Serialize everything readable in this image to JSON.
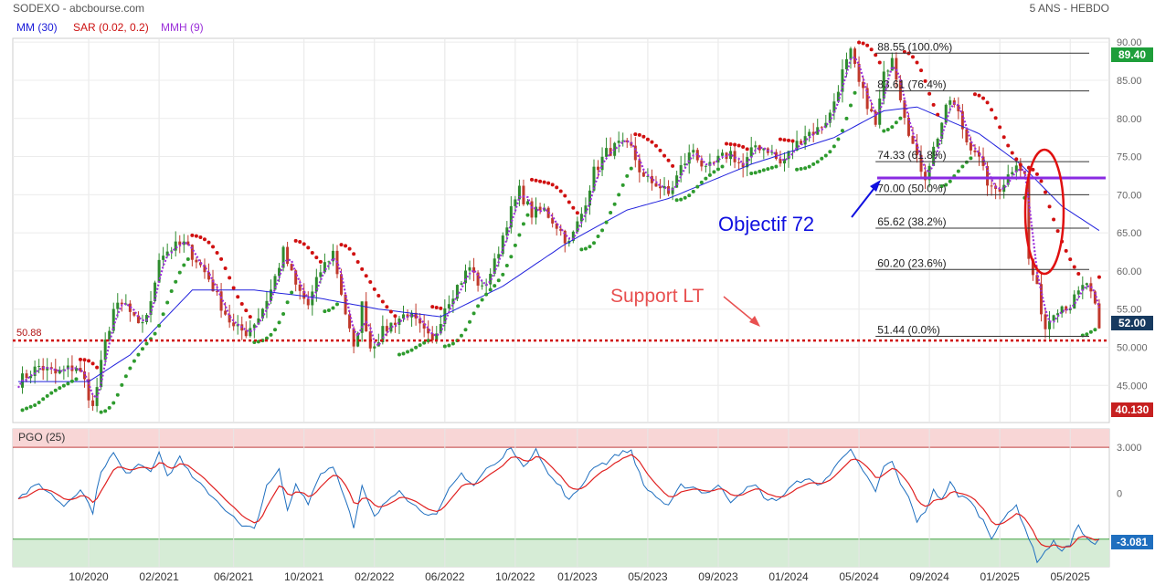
{
  "header": {
    "symbol": "SODEXO - abcbourse.com",
    "period": "5 ANS - HEBDO"
  },
  "indicators": [
    {
      "label": "MM (30)",
      "color": "#1a1ad8"
    },
    {
      "label": "SAR (0.02, 0.2)",
      "color": "#cc1111"
    },
    {
      "label": "MMH (9)",
      "color": "#9b30d9"
    }
  ],
  "colors": {
    "up_candle": "#2e8b2e",
    "down_candle": "#c0392b",
    "sar_up": "#2e9b2e",
    "sar_down": "#d01010",
    "mm30": "#2222dd",
    "mmh9": "#9b30d9",
    "support": "#d01010",
    "pgo_line": "#1f6fbf",
    "pgo_signal": "#e02020",
    "pgo_top_zone": "#f8d6d6",
    "pgo_bottom_zone": "#d6ecd6"
  },
  "chart_data": [
    {
      "type": "candlestick",
      "title": "SODEXO - abcbourse.com",
      "period": "5 ANS - HEBDO",
      "x_tick_labels": [
        "10/2020",
        "02/2021",
        "06/2021",
        "10/2021",
        "02/2022",
        "06/2022",
        "10/2022",
        "01/2023",
        "05/2023",
        "09/2023",
        "01/2024",
        "05/2024",
        "09/2024",
        "01/2025",
        "05/2025"
      ],
      "x_tick_weeks": [
        0,
        17,
        35,
        52,
        69,
        86,
        103,
        118,
        135,
        152,
        169,
        186,
        203,
        220,
        237
      ],
      "ylim": [
        40.13,
        90.5
      ],
      "y_ticks": [
        45,
        50,
        55,
        60,
        65,
        70,
        75,
        80,
        85,
        90
      ],
      "y_tick_labels": [
        "45.000",
        "50.000",
        "55.00",
        "60.00",
        "65.00",
        "70.00",
        "75.00",
        "80.00",
        "85.00",
        "90.00"
      ],
      "last_price": "52.00",
      "high_label": "89.40",
      "low_label": "40.130",
      "support_level": 50.88,
      "support_label": "50.88",
      "objective_level": 72.2,
      "fibonacci": [
        {
          "value": 88.55,
          "label": "88.55 (100.0%)"
        },
        {
          "value": 83.61,
          "label": "83.61 (76.4%)"
        },
        {
          "value": 74.33,
          "label": "74.33 (61.8%)"
        },
        {
          "value": 70.0,
          "label": "70.00 (50.0%)"
        },
        {
          "value": 65.62,
          "label": "65.62 (38.2%)"
        },
        {
          "value": 60.2,
          "label": "60.20 (23.6%)"
        },
        {
          "value": 51.44,
          "label": "51.44 (0.0%)"
        }
      ],
      "annotations": [
        {
          "text": "Objectif  72",
          "color": "#1010e0"
        },
        {
          "text": "Support LT",
          "color": "#e85050"
        }
      ],
      "close_anchors": [
        [
          -17,
          45.5
        ],
        [
          -12,
          47.5
        ],
        [
          -8,
          46.5
        ],
        [
          -3,
          47.5
        ],
        [
          -1,
          45.5
        ],
        [
          1,
          42.0
        ],
        [
          4,
          50.5
        ],
        [
          6,
          55.0
        ],
        [
          9,
          55.5
        ],
        [
          12,
          52.5
        ],
        [
          15,
          55.5
        ],
        [
          17,
          62.0
        ],
        [
          20,
          63.0
        ],
        [
          23,
          63.5
        ],
        [
          26,
          61.5
        ],
        [
          29,
          59.0
        ],
        [
          32,
          55.5
        ],
        [
          35,
          52.5
        ],
        [
          38,
          52.0
        ],
        [
          41,
          54.0
        ],
        [
          44,
          57.5
        ],
        [
          47,
          62.5
        ],
        [
          50,
          58.0
        ],
        [
          53,
          55.5
        ],
        [
          56,
          60.0
        ],
        [
          59,
          62.5
        ],
        [
          62,
          54.5
        ],
        [
          64,
          49.5
        ],
        [
          66,
          55.5
        ],
        [
          68,
          50.0
        ],
        [
          71,
          52.0
        ],
        [
          74,
          53.5
        ],
        [
          77,
          54.5
        ],
        [
          80,
          52.5
        ],
        [
          83,
          50.5
        ],
        [
          86,
          55.5
        ],
        [
          89,
          58.0
        ],
        [
          92,
          60.5
        ],
        [
          95,
          57.5
        ],
        [
          98,
          61.0
        ],
        [
          101,
          66.5
        ],
        [
          104,
          70.5
        ],
        [
          107,
          67.5
        ],
        [
          110,
          68.0
        ],
        [
          113,
          66.0
        ],
        [
          116,
          63.5
        ],
        [
          119,
          67.5
        ],
        [
          122,
          73.0
        ],
        [
          125,
          75.5
        ],
        [
          128,
          76.5
        ],
        [
          131,
          76.0
        ],
        [
          134,
          72.0
        ],
        [
          137,
          71.5
        ],
        [
          140,
          70.0
        ],
        [
          143,
          73.5
        ],
        [
          146,
          76.0
        ],
        [
          149,
          73.0
        ],
        [
          152,
          74.5
        ],
        [
          155,
          75.5
        ],
        [
          158,
          73.5
        ],
        [
          161,
          76.5
        ],
        [
          164,
          76.0
        ],
        [
          167,
          74.0
        ],
        [
          170,
          76.0
        ],
        [
          173,
          78.0
        ],
        [
          176,
          78.5
        ],
        [
          179,
          80.5
        ],
        [
          182,
          86.0
        ],
        [
          184,
          88.5
        ],
        [
          186,
          84.5
        ],
        [
          188,
          82.0
        ],
        [
          190,
          79.0
        ],
        [
          192,
          85.5
        ],
        [
          194,
          88.5
        ],
        [
          196,
          83.0
        ],
        [
          198,
          78.5
        ],
        [
          200,
          74.5
        ],
        [
          202,
          72.5
        ],
        [
          204,
          76.0
        ],
        [
          206,
          79.5
        ],
        [
          208,
          82.5
        ],
        [
          210,
          80.5
        ],
        [
          212,
          77.0
        ],
        [
          214,
          76.0
        ],
        [
          216,
          73.0
        ],
        [
          218,
          70.5
        ],
        [
          220,
          71.0
        ],
        [
          222,
          72.5
        ],
        [
          224,
          74.5
        ],
        [
          226,
          72.5
        ],
        [
          227,
          61.5
        ],
        [
          229,
          57.5
        ],
        [
          231,
          52.5
        ],
        [
          233,
          55.0
        ],
        [
          235,
          55.5
        ],
        [
          237,
          55.5
        ],
        [
          239,
          57.0
        ],
        [
          241,
          58.5
        ],
        [
          243,
          55.0
        ],
        [
          244,
          52.0
        ]
      ],
      "series": [
        {
          "name": "MM (30)",
          "anchors": [
            [
              -17,
              45.5
            ],
            [
              0,
              45.5
            ],
            [
              10,
              49.0
            ],
            [
              25,
              57.5
            ],
            [
              40,
              57.5
            ],
            [
              55,
              56.5
            ],
            [
              70,
              55.0
            ],
            [
              85,
              54.0
            ],
            [
              100,
              58.0
            ],
            [
              115,
              63.5
            ],
            [
              130,
              68.0
            ],
            [
              140,
              69.5
            ],
            [
              160,
              74.0
            ],
            [
              180,
              77.5
            ],
            [
              192,
              81.0
            ],
            [
              200,
              81.5
            ],
            [
              215,
              78.0
            ],
            [
              225,
              74.0
            ],
            [
              235,
              68.5
            ],
            [
              244,
              65.3
            ]
          ]
        },
        {
          "name": "SAR (0.02, 0.2)"
        },
        {
          "name": "MMH (9)"
        }
      ]
    },
    {
      "type": "line",
      "title": "PGO (25)",
      "ylim": [
        -4.8,
        4.2
      ],
      "y_ticks": [
        3.0,
        0.0
      ],
      "y_tick_labels": [
        "3.000",
        "0"
      ],
      "upper_zone": 3.0,
      "lower_zone": -3.0,
      "last_value": "-3.081",
      "series": [
        {
          "name": "PGO (25)",
          "anchors": [
            [
              -17,
              -0.3
            ],
            [
              -12,
              0.6
            ],
            [
              -6,
              -0.8
            ],
            [
              -2,
              0.3
            ],
            [
              1,
              -1.2
            ],
            [
              3,
              1.5
            ],
            [
              6,
              2.6
            ],
            [
              9,
              1.2
            ],
            [
              12,
              2.0
            ],
            [
              15,
              1.5
            ],
            [
              17,
              2.8
            ],
            [
              19,
              1.0
            ],
            [
              22,
              2.4
            ],
            [
              25,
              1.0
            ],
            [
              28,
              0.3
            ],
            [
              31,
              -0.5
            ],
            [
              34,
              -1.3
            ],
            [
              37,
              -2.2
            ],
            [
              40,
              -2.3
            ],
            [
              43,
              0.4
            ],
            [
              46,
              1.5
            ],
            [
              48,
              -1.2
            ],
            [
              50,
              0.6
            ],
            [
              53,
              -0.6
            ],
            [
              56,
              1.3
            ],
            [
              59,
              1.8
            ],
            [
              62,
              -0.3
            ],
            [
              64,
              -2.3
            ],
            [
              66,
              0.4
            ],
            [
              69,
              -1.6
            ],
            [
              72,
              -0.5
            ],
            [
              75,
              0.3
            ],
            [
              78,
              -0.7
            ],
            [
              81,
              -1.2
            ],
            [
              84,
              -1.5
            ],
            [
              87,
              0.2
            ],
            [
              90,
              1.3
            ],
            [
              93,
              0.5
            ],
            [
              96,
              1.6
            ],
            [
              99,
              2.0
            ],
            [
              102,
              3.1
            ],
            [
              105,
              1.6
            ],
            [
              108,
              3.0
            ],
            [
              111,
              1.2
            ],
            [
              114,
              0.4
            ],
            [
              116,
              -0.5
            ],
            [
              119,
              0.5
            ],
            [
              122,
              1.8
            ],
            [
              125,
              2.0
            ],
            [
              128,
              2.6
            ],
            [
              131,
              2.8
            ],
            [
              134,
              0.5
            ],
            [
              137,
              -0.2
            ],
            [
              140,
              -0.9
            ],
            [
              143,
              0.5
            ],
            [
              146,
              0.4
            ],
            [
              149,
              0.0
            ],
            [
              152,
              0.5
            ],
            [
              155,
              -0.5
            ],
            [
              158,
              0.2
            ],
            [
              161,
              0.5
            ],
            [
              164,
              -0.5
            ],
            [
              167,
              -0.3
            ],
            [
              170,
              0.5
            ],
            [
              173,
              1.0
            ],
            [
              176,
              0.5
            ],
            [
              179,
              1.2
            ],
            [
              182,
              2.4
            ],
            [
              184,
              3.0
            ],
            [
              186,
              1.8
            ],
            [
              188,
              1.0
            ],
            [
              190,
              0.0
            ],
            [
              192,
              1.8
            ],
            [
              194,
              2.0
            ],
            [
              196,
              0.6
            ],
            [
              198,
              -0.3
            ],
            [
              200,
              -1.8
            ],
            [
              202,
              -1.3
            ],
            [
              204,
              0.3
            ],
            [
              206,
              -0.5
            ],
            [
              208,
              0.8
            ],
            [
              210,
              -0.3
            ],
            [
              212,
              -0.2
            ],
            [
              214,
              -1.0
            ],
            [
              216,
              -1.8
            ],
            [
              218,
              -2.9
            ],
            [
              220,
              -1.9
            ],
            [
              222,
              -1.4
            ],
            [
              224,
              -0.8
            ],
            [
              226,
              -2.2
            ],
            [
              227,
              -2.9
            ],
            [
              229,
              -4.4
            ],
            [
              231,
              -3.8
            ],
            [
              233,
              -3.2
            ],
            [
              235,
              -3.7
            ],
            [
              237,
              -3.4
            ],
            [
              239,
              -2.0
            ],
            [
              241,
              -3.0
            ],
            [
              243,
              -3.3
            ],
            [
              244,
              -3.081
            ]
          ]
        },
        {
          "name": "Signal"
        }
      ]
    }
  ]
}
